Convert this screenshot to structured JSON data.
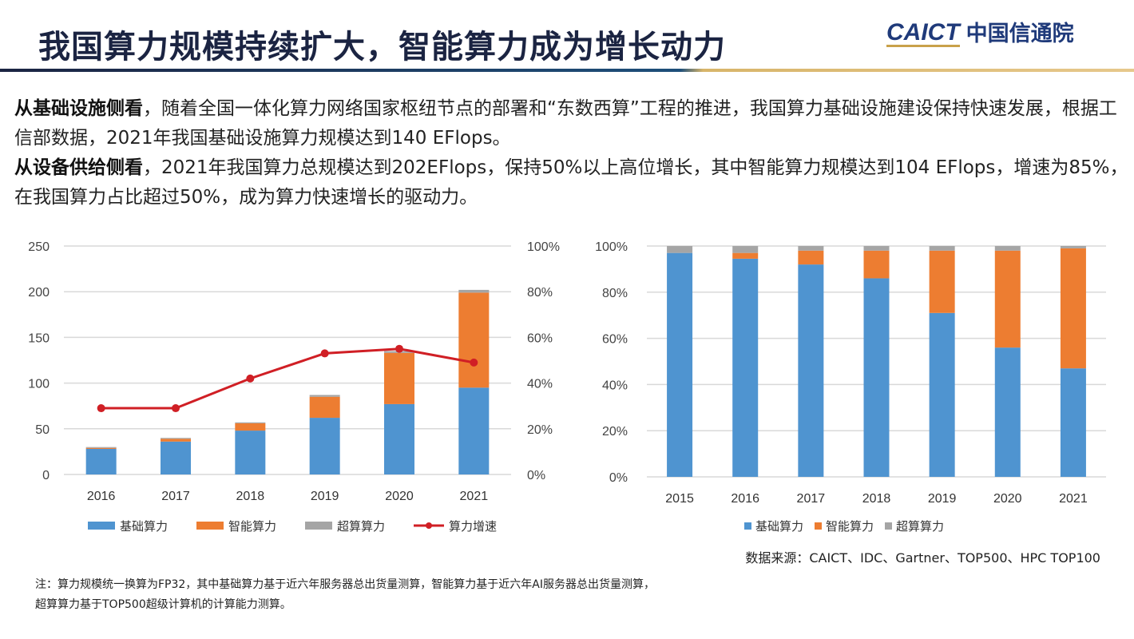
{
  "header": {
    "title": "我国算力规模持续扩大，智能算力成为增长动力",
    "logo_en": "CAICT",
    "logo_cn": "中国信通院"
  },
  "body": {
    "p1_lead": "从基础设施侧看",
    "p1_text": "，随着全国一体化算力网络国家枢纽节点的部署和“东数西算”工程的推进，我国算力基础设施建设保持快速发展，根据工信部数据，2021年我国基础设施算力规模达到140 EFlops。",
    "p2_lead": "从设备供给侧看",
    "p2_text": "，2021年我国算力总规模达到202EFlops，保持50%以上高位增长，其中智能算力规模达到104 EFlops，增速为85%，在我国算力占比超过50%，成为算力快速增长的驱动力。"
  },
  "colors": {
    "basic": "#4f94d0",
    "intelligent": "#ed7d31",
    "super": "#a5a5a5",
    "growth": "#d01f25"
  },
  "chart_data": [
    {
      "type": "bar",
      "stacked": true,
      "categories": [
        "2016",
        "2017",
        "2018",
        "2019",
        "2020",
        "2021"
      ],
      "series": [
        {
          "name": "基础算力",
          "values": [
            28,
            36,
            48,
            62,
            77,
            95
          ]
        },
        {
          "name": "智能算力",
          "values": [
            1,
            3,
            8,
            23,
            56,
            104
          ]
        },
        {
          "name": "超算算力",
          "values": [
            1,
            1,
            1,
            2,
            2,
            3
          ]
        }
      ],
      "line_series": {
        "name": "算力增速",
        "values": [
          29,
          29,
          42,
          53,
          55,
          49
        ],
        "axis": "right"
      },
      "ylim": [
        0,
        250
      ],
      "yticks": [
        "0",
        "50",
        "100",
        "150",
        "200",
        "250"
      ],
      "y2lim": [
        0,
        100
      ],
      "y2ticks": [
        "0%",
        "20%",
        "40%",
        "60%",
        "80%",
        "100%"
      ],
      "grid": true,
      "legend": "bottom"
    },
    {
      "type": "bar",
      "stacked": true,
      "percent": true,
      "categories": [
        "2015",
        "2016",
        "2017",
        "2018",
        "2019",
        "2020",
        "2021"
      ],
      "series": [
        {
          "name": "基础算力",
          "values": [
            97,
            94.5,
            92,
            86,
            71,
            56,
            47
          ]
        },
        {
          "name": "智能算力",
          "values": [
            0,
            2.5,
            6,
            12,
            27,
            42,
            52
          ]
        },
        {
          "name": "超算算力",
          "values": [
            3,
            3,
            2,
            2,
            2,
            2,
            1
          ]
        }
      ],
      "ylim": [
        0,
        100
      ],
      "yticks": [
        "0%",
        "20%",
        "40%",
        "60%",
        "80%",
        "100%"
      ],
      "grid": true,
      "legend": "bottom"
    }
  ],
  "footer": {
    "source": "数据来源：CAICT、IDC、Gartner、TOP500、HPC TOP100",
    "note_line1": "注：算力规模统一换算为FP32，其中基础算力基于近六年服务器总出货量测算，智能算力基于近六年AI服务器总出货量测算，",
    "note_line2": "超算算力基于TOP500超级计算机的计算能力测算。"
  }
}
